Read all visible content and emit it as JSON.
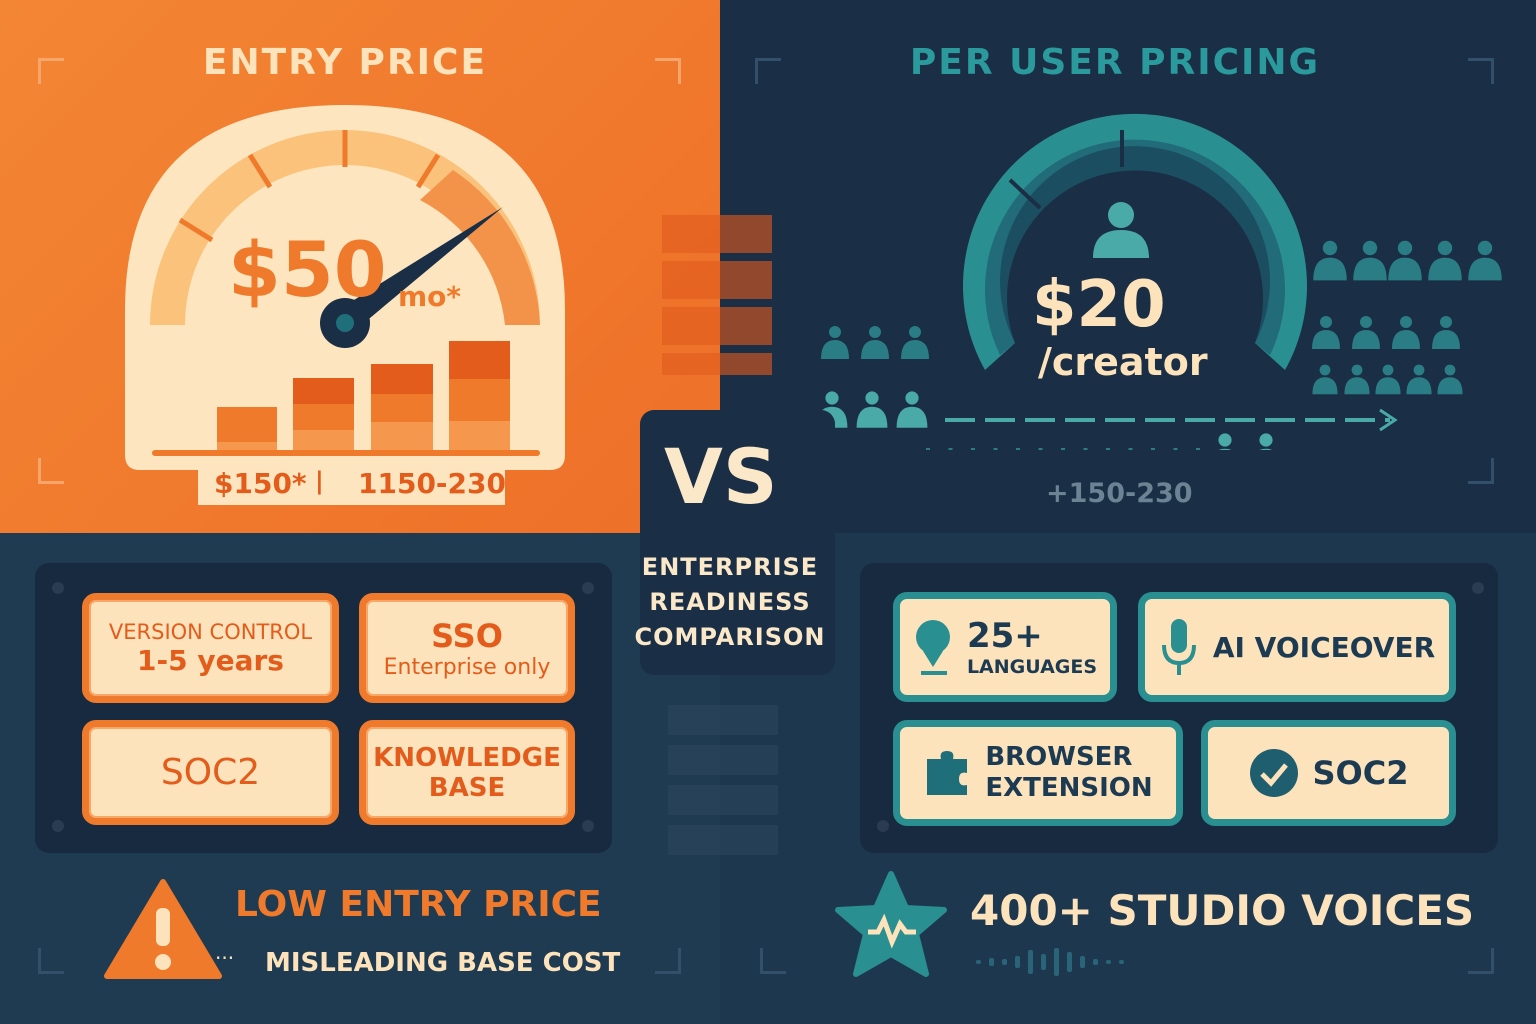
{
  "left": {
    "title": "ENTRY PRICE",
    "price": "$50",
    "unit": "mo*",
    "range_a": "$150*",
    "range_sep": "|",
    "range_b": "1150-230",
    "features": [
      {
        "line1": "VERSION CONTROL",
        "line2": "1-5 years"
      },
      {
        "line1": "SSO",
        "line2": "Enterprise only"
      },
      {
        "line1": "SOC2"
      },
      {
        "line1": "KNOWLEDGE",
        "line2": "BASE"
      }
    ],
    "warning_title": "LOW ENTRY PRICE",
    "warning_sub": "MISLEADING BASE COST"
  },
  "right": {
    "title": "PER USER PRICING",
    "price": "$20",
    "unit": "/creator",
    "range": "+150-230",
    "features": [
      {
        "value": "25+",
        "label": "LANGUAGES",
        "icon": "globe-pin-icon"
      },
      {
        "label": "AI VOICEOVER",
        "icon": "microphone-icon"
      },
      {
        "line1": "BROWSER",
        "line2": "EXTENSION",
        "icon": "puzzle-icon"
      },
      {
        "label": "SOC2",
        "icon": "check-circle-icon"
      }
    ],
    "highlight": "400+ STUDIO VOICES"
  },
  "center": {
    "vs": "VS",
    "caption": [
      "ENTERPRISE",
      "READINESS",
      "COMPARISON"
    ]
  },
  "colors": {
    "orange": "#f07a2c",
    "navy": "#1a2e46",
    "teal": "#2a8f91",
    "cream": "#fde3bb"
  }
}
